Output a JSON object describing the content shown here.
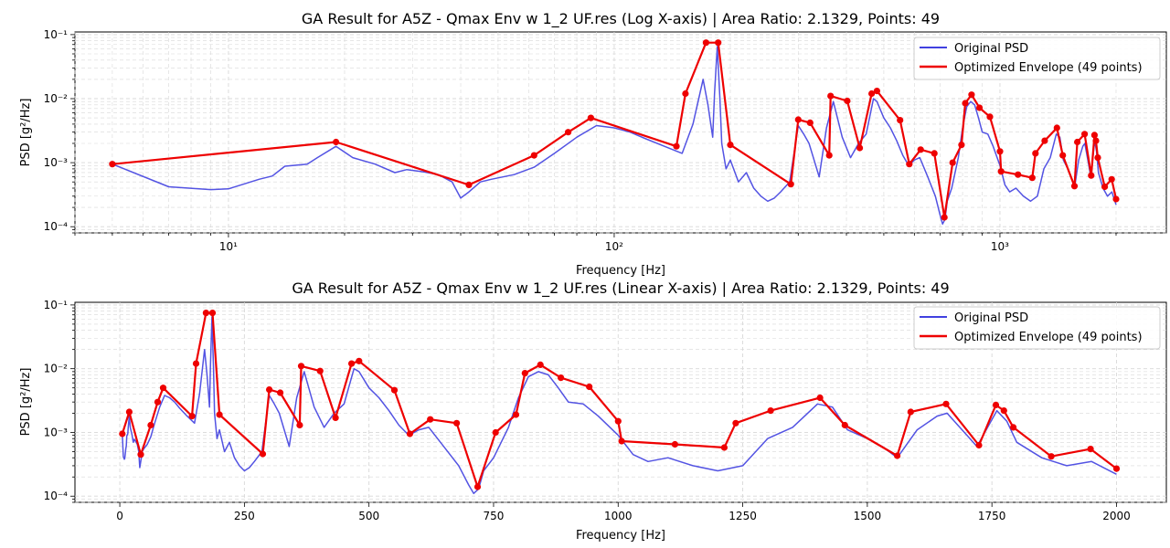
{
  "colors": {
    "original": "#4040e0",
    "envelope": "#ee0000",
    "grid": "#d8d8d8",
    "axes": "#000000"
  },
  "chart_data": [
    {
      "type": "line",
      "title": "GA Result for A5Z - Qmax Env w 1_2 UF.res (Log X-axis) | Area Ratio: 2.1329, Points: 49",
      "xlabel": "Frequency [Hz]",
      "ylabel": "PSD [g²/Hz]",
      "xscale": "log",
      "yscale": "log",
      "xlim": [
        4,
        2700
      ],
      "ylim": [
        8e-05,
        0.11
      ],
      "x_ticks": [
        {
          "value": 10,
          "label": "10¹"
        },
        {
          "value": 100,
          "label": "10²"
        },
        {
          "value": 1000,
          "label": "10³"
        }
      ],
      "y_ticks": [
        {
          "value": 0.0001,
          "label": "10⁻⁴"
        },
        {
          "value": 0.001,
          "label": "10⁻³"
        },
        {
          "value": 0.01,
          "label": "10⁻²"
        },
        {
          "value": 0.1,
          "label": "10⁻¹"
        }
      ],
      "grid": true,
      "legend": "top-right",
      "legend_entries": [
        "Original PSD",
        "Optimized Envelope (49 points)"
      ]
    },
    {
      "type": "line",
      "title": "GA Result for A5Z - Qmax Env w 1_2 UF.res (Linear X-axis) | Area Ratio: 2.1329, Points: 49",
      "xlabel": "Frequency [Hz]",
      "ylabel": "PSD [g²/Hz]",
      "xscale": "linear",
      "yscale": "log",
      "xlim": [
        -90,
        2100
      ],
      "ylim": [
        8e-05,
        0.11
      ],
      "x_ticks": [
        {
          "value": 0,
          "label": "0"
        },
        {
          "value": 250,
          "label": "250"
        },
        {
          "value": 500,
          "label": "500"
        },
        {
          "value": 750,
          "label": "750"
        },
        {
          "value": 1000,
          "label": "1000"
        },
        {
          "value": 1250,
          "label": "1250"
        },
        {
          "value": 1500,
          "label": "1500"
        },
        {
          "value": 1750,
          "label": "1750"
        },
        {
          "value": 2000,
          "label": "2000"
        }
      ],
      "y_ticks": [
        {
          "value": 0.0001,
          "label": "10⁻⁴"
        },
        {
          "value": 0.001,
          "label": "10⁻³"
        },
        {
          "value": 0.01,
          "label": "10⁻²"
        },
        {
          "value": 0.1,
          "label": "10⁻¹"
        }
      ],
      "grid": true,
      "legend": "top-right",
      "legend_entries": [
        "Original PSD",
        "Optimized Envelope (49 points)"
      ]
    }
  ],
  "series": {
    "original_psd": {
      "name": "Original PSD",
      "x": [
        5,
        7,
        9,
        10,
        12,
        13,
        14,
        16,
        17,
        19,
        21,
        24,
        27,
        29,
        32,
        35,
        38,
        40,
        42,
        45,
        48,
        55,
        62,
        70,
        80,
        90,
        100,
        110,
        120,
        135,
        150,
        160,
        170,
        175,
        180,
        182,
        185,
        188,
        190,
        195,
        200,
        210,
        220,
        230,
        240,
        250,
        260,
        270,
        285,
        300,
        310,
        320,
        340,
        355,
        370,
        390,
        410,
        430,
        450,
        470,
        480,
        500,
        520,
        540,
        560,
        580,
        600,
        620,
        650,
        680,
        700,
        710,
        720,
        730,
        750,
        780,
        800,
        820,
        840,
        860,
        880,
        900,
        930,
        960,
        1000,
        1030,
        1060,
        1100,
        1150,
        1200,
        1250,
        1300,
        1350,
        1400,
        1430,
        1460,
        1500,
        1530,
        1560,
        1600,
        1640,
        1660,
        1700,
        1720,
        1760,
        1780,
        1800,
        1850,
        1900,
        1950,
        2000
      ],
      "y": [
        0.00095,
        0.00042,
        0.00038,
        0.00039,
        0.00055,
        0.00062,
        0.00088,
        0.00095,
        0.0012,
        0.0018,
        0.0012,
        0.00095,
        0.0007,
        0.00078,
        0.00072,
        0.00065,
        0.0005,
        0.00028,
        0.00035,
        0.0005,
        0.00055,
        0.00065,
        0.00085,
        0.0014,
        0.0025,
        0.0038,
        0.0035,
        0.003,
        0.0024,
        0.0018,
        0.0014,
        0.004,
        0.02,
        0.008,
        0.0025,
        0.012,
        0.065,
        0.01,
        0.002,
        0.0008,
        0.0011,
        0.0005,
        0.0007,
        0.0004,
        0.0003,
        0.00025,
        0.00028,
        0.00035,
        0.0005,
        0.0038,
        0.0028,
        0.002,
        0.0006,
        0.0035,
        0.009,
        0.0025,
        0.0012,
        0.002,
        0.0028,
        0.01,
        0.009,
        0.005,
        0.0035,
        0.0022,
        0.0013,
        0.0009,
        0.0011,
        0.0012,
        0.0006,
        0.0003,
        0.00015,
        0.00011,
        0.00013,
        0.00025,
        0.0004,
        0.0012,
        0.0035,
        0.0075,
        0.009,
        0.008,
        0.005,
        0.003,
        0.0028,
        0.0018,
        0.0009,
        0.00045,
        0.00035,
        0.0004,
        0.0003,
        0.00025,
        0.0003,
        0.0008,
        0.0012,
        0.0028,
        0.0025,
        0.0011,
        0.0008,
        0.0006,
        0.0004,
        0.0011,
        0.0018,
        0.002,
        0.0009,
        0.0006,
        0.0022,
        0.0015,
        0.0007,
        0.0004,
        0.0003,
        0.00035,
        0.00022
      ]
    },
    "envelope": {
      "name": "Optimized Envelope (49 points)",
      "x": [
        5,
        19,
        42,
        62,
        76,
        87,
        145,
        153,
        173,
        186,
        200,
        287,
        300,
        322,
        361,
        364,
        402,
        433,
        465,
        480,
        551,
        582,
        623,
        676,
        718,
        754,
        795,
        813,
        844,
        885,
        942,
        1000,
        1007,
        1114,
        1213,
        1236,
        1306,
        1405,
        1455,
        1560,
        1587,
        1658,
        1724,
        1758,
        1774,
        1793,
        1869,
        1948,
        2000
      ],
      "y": [
        0.00095,
        0.0021,
        0.00045,
        0.0013,
        0.003,
        0.005,
        0.0018,
        0.012,
        0.075,
        0.075,
        0.0019,
        0.00046,
        0.0047,
        0.0042,
        0.0013,
        0.011,
        0.0092,
        0.0017,
        0.012,
        0.0132,
        0.0046,
        0.00095,
        0.0016,
        0.0014,
        0.00014,
        0.001,
        0.0019,
        0.0085,
        0.0115,
        0.0072,
        0.0052,
        0.0015,
        0.00073,
        0.00065,
        0.00058,
        0.0014,
        0.0022,
        0.0035,
        0.0013,
        0.00043,
        0.0021,
        0.0028,
        0.00063,
        0.0027,
        0.0022,
        0.0012,
        0.00042,
        0.00055,
        0.00027
      ]
    }
  }
}
